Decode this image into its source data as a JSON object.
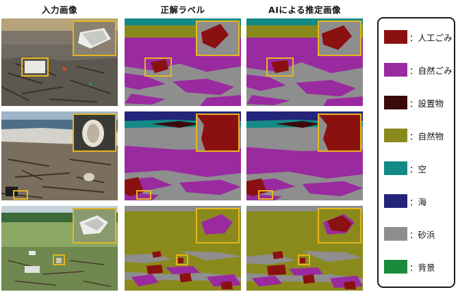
{
  "columns": {
    "input": "入力画像",
    "truth": "正解ラベル",
    "prediction": "AIによる推定画像"
  },
  "legend": [
    {
      "label": "：人工ごみ",
      "color": "#8b1010"
    },
    {
      "label": "：自然ごみ",
      "color": "#9a2aa0"
    },
    {
      "label": "：設置物",
      "color": "#3a0a0a"
    },
    {
      "label": "：自然物",
      "color": "#8a8a1c"
    },
    {
      "label": "：空",
      "color": "#138a86"
    },
    {
      "label": "：海",
      "color": "#24247a"
    },
    {
      "label": "：砂浜",
      "color": "#8e8e8e"
    },
    {
      "label": "：背景",
      "color": "#1a8a3c"
    }
  ],
  "highlight_color": "#e6b520"
}
